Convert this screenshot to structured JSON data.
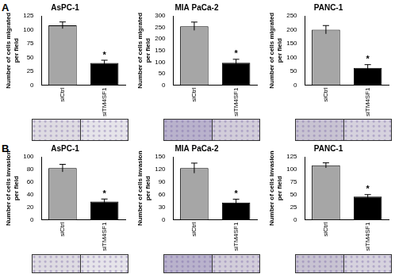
{
  "panel_labels": [
    "A",
    "B"
  ],
  "chart_data": [
    {
      "type": "bar",
      "title": "AsPC-1",
      "ylabel": [
        "Number of cells migrated",
        "per field"
      ],
      "categories": [
        "siCtrl",
        "siTM4SF1"
      ],
      "values": [
        108,
        40
      ],
      "errors": [
        6,
        5
      ],
      "colors": [
        "#a6a6a6",
        "#000000"
      ],
      "ylim": [
        0,
        125
      ],
      "yticks": [
        0,
        25,
        50,
        75,
        100,
        125
      ],
      "grid": false,
      "annotations": [
        {
          "category": "siTM4SF1",
          "text": "*"
        }
      ]
    },
    {
      "type": "bar",
      "title": "MIA PaCa-2",
      "ylabel": [
        "Number of cells migrated",
        "per field"
      ],
      "categories": [
        "siCtrl",
        "siTM4SF1"
      ],
      "values": [
        255,
        97
      ],
      "errors": [
        18,
        15
      ],
      "colors": [
        "#a6a6a6",
        "#000000"
      ],
      "ylim": [
        0,
        300
      ],
      "yticks": [
        0,
        50,
        100,
        150,
        200,
        250,
        300
      ],
      "grid": false,
      "annotations": [
        {
          "category": "siTM4SF1",
          "text": "*"
        }
      ]
    },
    {
      "type": "bar",
      "title": "PANC-1",
      "ylabel": [
        "Number of cells migrated",
        "per field"
      ],
      "categories": [
        "siCtrl",
        "siTM4SF1"
      ],
      "values": [
        200,
        62
      ],
      "errors": [
        15,
        12
      ],
      "colors": [
        "#a6a6a6",
        "#000000"
      ],
      "ylim": [
        0,
        250
      ],
      "yticks": [
        0,
        50,
        100,
        150,
        200,
        250
      ],
      "grid": false,
      "annotations": [
        {
          "category": "siTM4SF1",
          "text": "*"
        }
      ]
    },
    {
      "type": "bar",
      "title": "AsPC-1",
      "ylabel": [
        "Number of cells invasion",
        "per field"
      ],
      "categories": [
        "siCtrl",
        "siTM4SF1"
      ],
      "values": [
        82,
        29
      ],
      "errors": [
        6,
        4
      ],
      "colors": [
        "#a6a6a6",
        "#000000"
      ],
      "ylim": [
        0,
        100
      ],
      "yticks": [
        0,
        20,
        40,
        60,
        80,
        100
      ],
      "grid": false,
      "annotations": [
        {
          "category": "siTM4SF1",
          "text": "*"
        }
      ]
    },
    {
      "type": "bar",
      "title": "MIA PaCa-2",
      "ylabel": [
        "Number of cells invasion",
        "per field"
      ],
      "categories": [
        "siCtrl",
        "siTM4SF1"
      ],
      "values": [
        123,
        41
      ],
      "errors": [
        12,
        8
      ],
      "colors": [
        "#a6a6a6",
        "#000000"
      ],
      "ylim": [
        0,
        150
      ],
      "yticks": [
        0,
        30,
        60,
        90,
        120,
        150
      ],
      "grid": false,
      "annotations": [
        {
          "category": "siTM4SF1",
          "text": "*"
        }
      ]
    },
    {
      "type": "bar",
      "title": "PANC-1",
      "ylabel": [
        "Number of cells invasion",
        "per field"
      ],
      "categories": [
        "siCtrl",
        "siTM4SF1"
      ],
      "values": [
        108,
        46
      ],
      "errors": [
        5,
        4
      ],
      "colors": [
        "#a6a6a6",
        "#000000"
      ],
      "ylim": [
        0,
        125
      ],
      "yticks": [
        0,
        25,
        50,
        75,
        100,
        125
      ],
      "grid": false,
      "annotations": [
        {
          "category": "siTM4SF1",
          "text": "*"
        }
      ]
    }
  ]
}
